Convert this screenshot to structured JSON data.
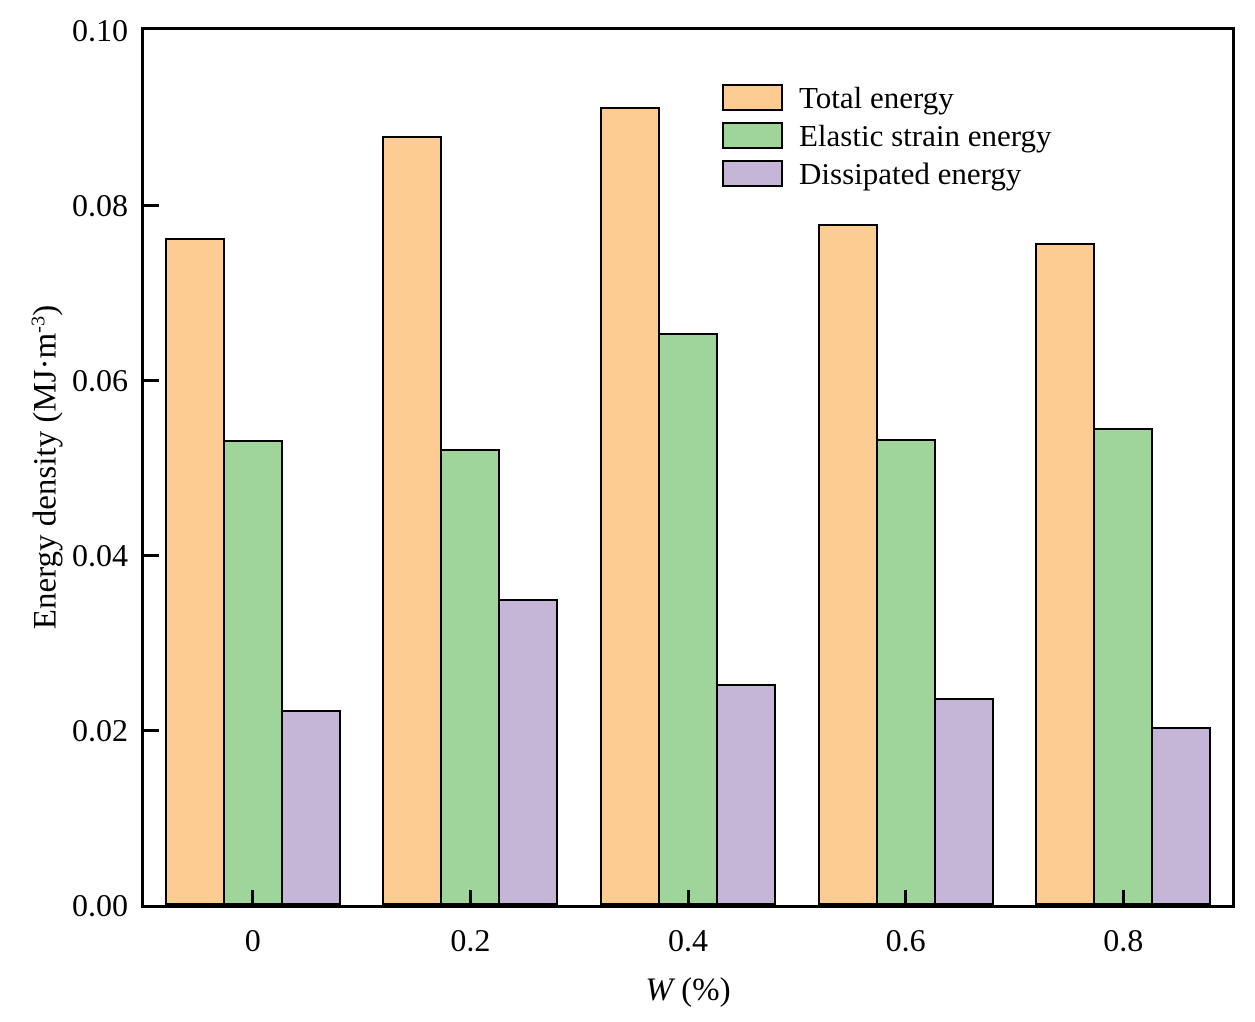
{
  "chart_data": {
    "type": "bar",
    "title": "",
    "xlabel": "W (%)",
    "xlabel_w": "W",
    "xlabel_unit": " (%)",
    "ylabel": "Energy density (MJ·m⁻³)",
    "ylabel_pre": "Energy density (MJ·m",
    "ylabel_sup": "-3",
    "ylabel_post": ")",
    "categories": [
      "0",
      "0.2",
      "0.4",
      "0.6",
      "0.8"
    ],
    "series": [
      {
        "name": "Total energy",
        "color": "#FCCC92",
        "values": [
          0.0762,
          0.0879,
          0.0912,
          0.0778,
          0.0756
        ]
      },
      {
        "name": "Elastic strain energy",
        "color": "#9FD59B",
        "values": [
          0.0532,
          0.0521,
          0.0654,
          0.0533,
          0.0545
        ]
      },
      {
        "name": "Dissipated energy",
        "color": "#C5B6D8",
        "values": [
          0.0223,
          0.035,
          0.0252,
          0.0237,
          0.0203
        ]
      }
    ],
    "ylim": [
      0.0,
      0.1
    ],
    "yticks": [
      "0.00",
      "0.02",
      "0.04",
      "0.06",
      "0.08",
      "0.10"
    ],
    "grid": false,
    "legend_position": "upper right inside plot",
    "bar_border_color": "#000000",
    "axis_color": "#000000",
    "background_color": "#ffffff"
  }
}
